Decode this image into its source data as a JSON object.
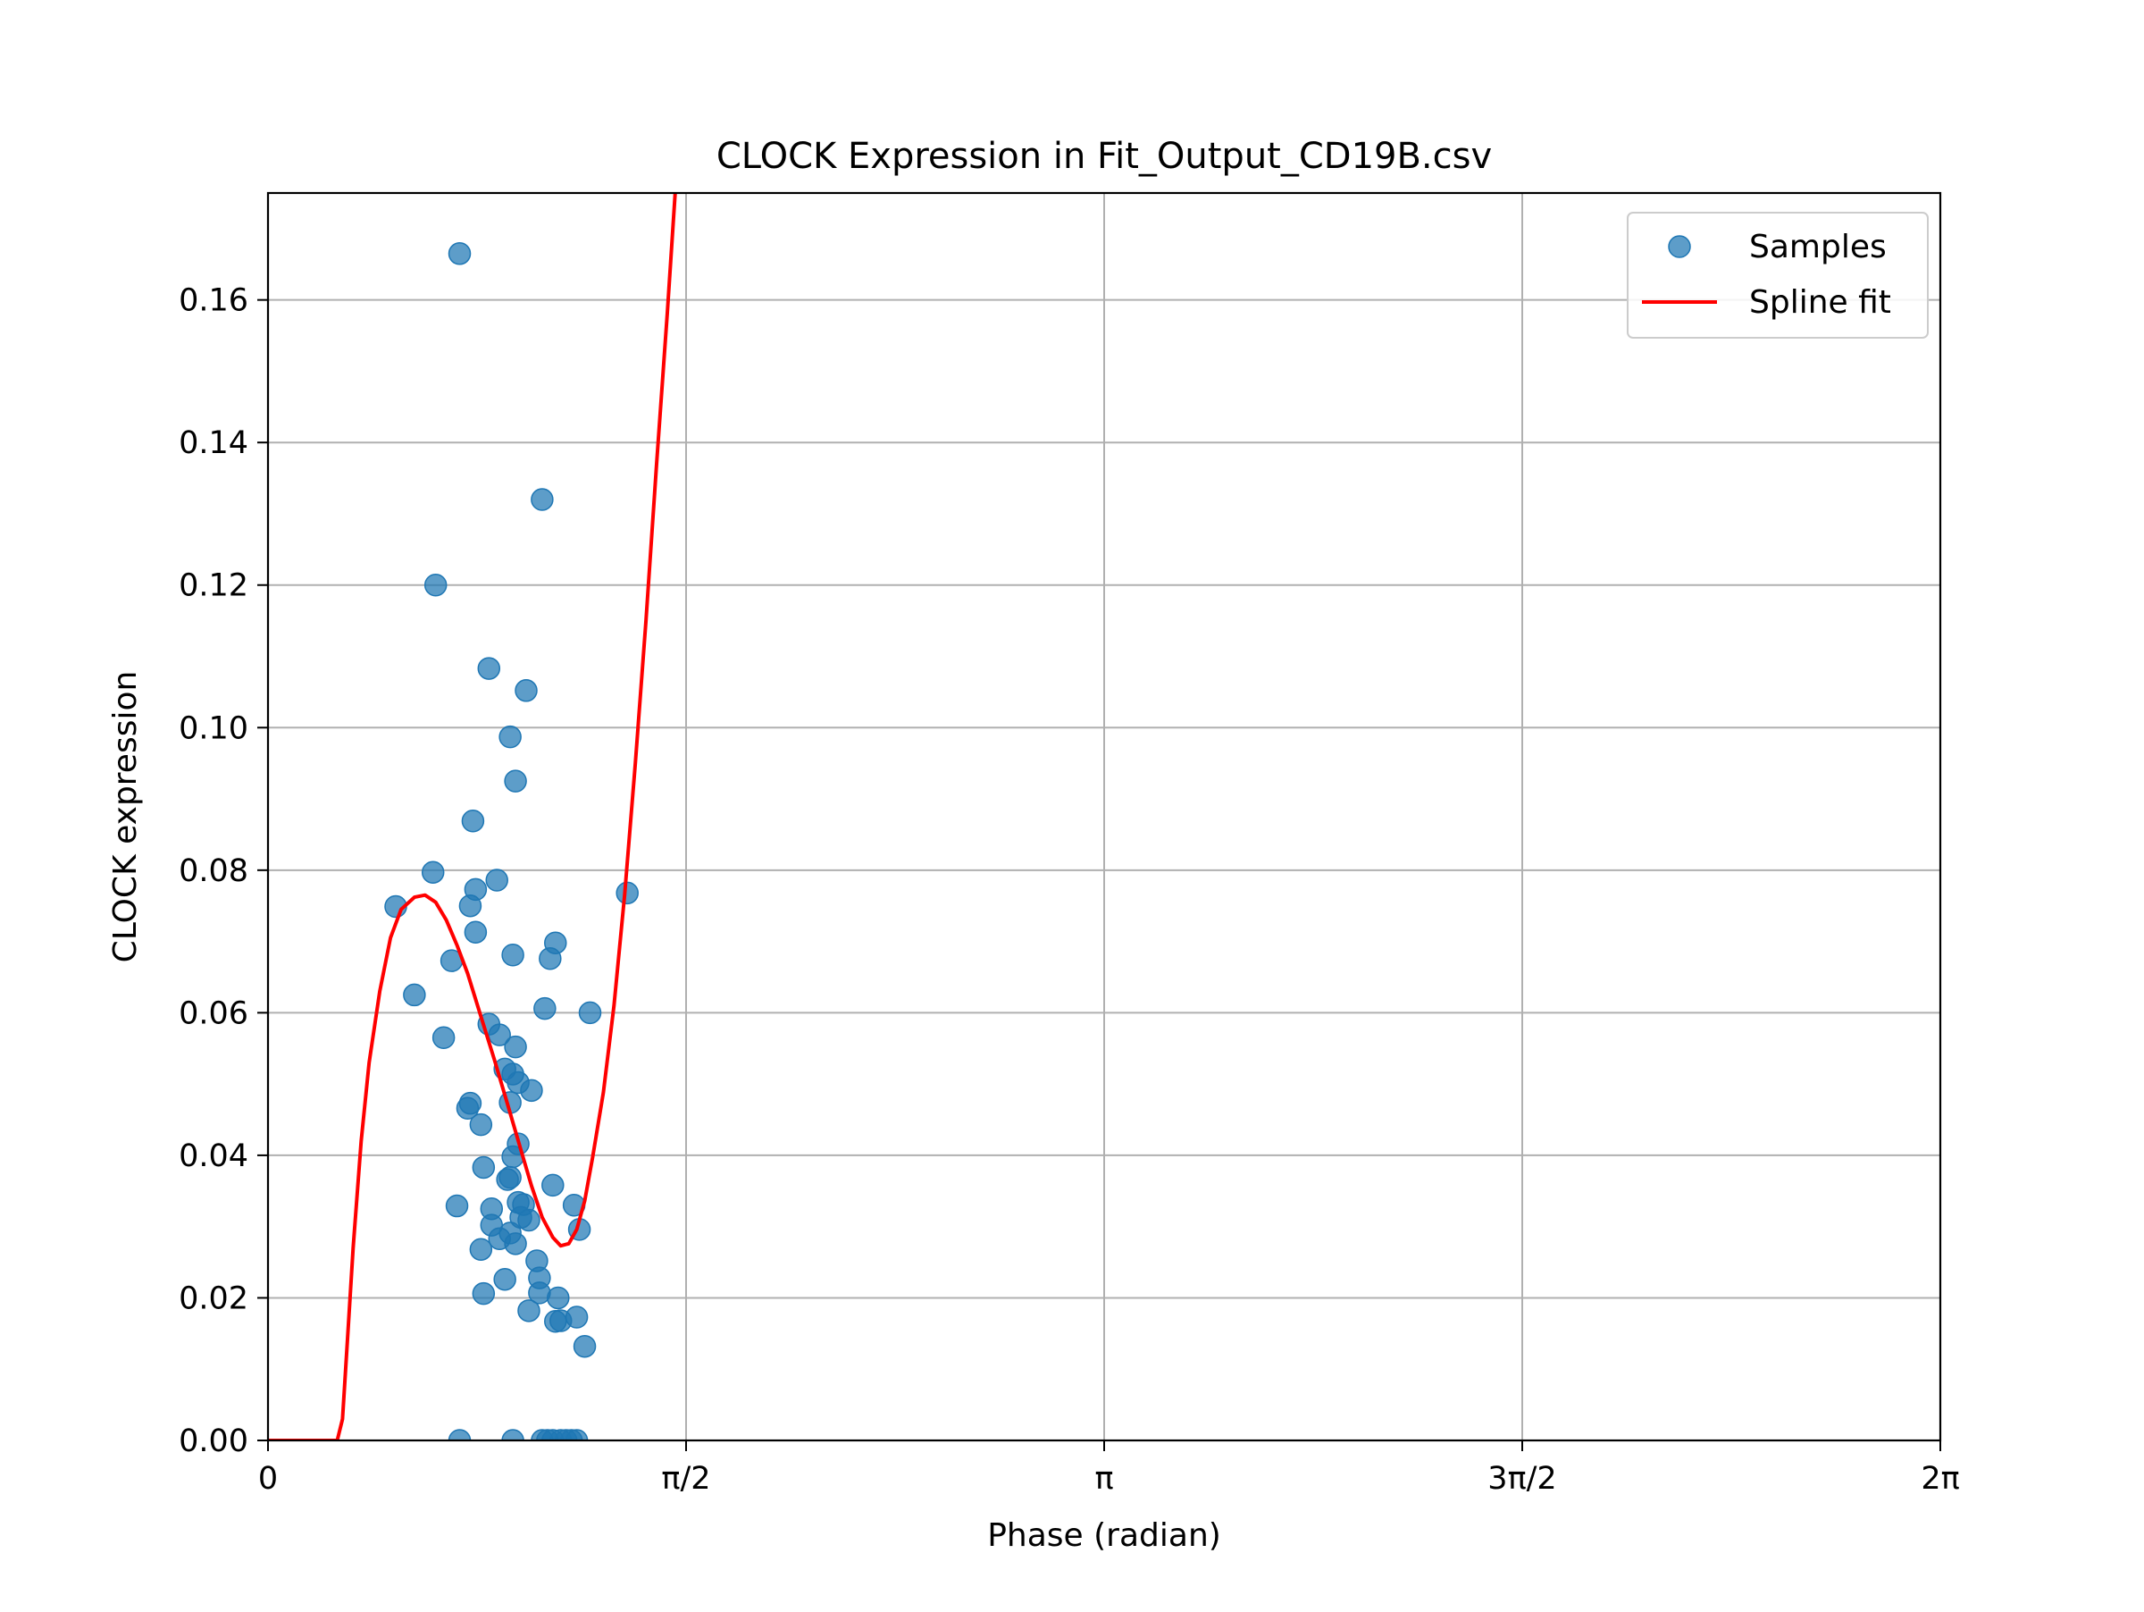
{
  "chart_data": {
    "type": "scatter",
    "title": "CLOCK Expression in Fit_Output_CD19B.csv",
    "xlabel": "Phase (radian)",
    "ylabel": "CLOCK expression",
    "xlim": [
      0,
      6.2832
    ],
    "ylim": [
      0,
      0.175
    ],
    "x_ticks": [
      {
        "value": 0,
        "label": "0"
      },
      {
        "value": 1.5708,
        "label": "π/2"
      },
      {
        "value": 3.1416,
        "label": "π"
      },
      {
        "value": 4.7124,
        "label": "3π/2"
      },
      {
        "value": 6.2832,
        "label": "2π"
      }
    ],
    "y_ticks": [
      {
        "value": 0.0,
        "label": "0.00"
      },
      {
        "value": 0.02,
        "label": "0.02"
      },
      {
        "value": 0.04,
        "label": "0.04"
      },
      {
        "value": 0.06,
        "label": "0.06"
      },
      {
        "value": 0.08,
        "label": "0.08"
      },
      {
        "value": 0.1,
        "label": "0.10"
      },
      {
        "value": 0.12,
        "label": "0.12"
      },
      {
        "value": 0.14,
        "label": "0.14"
      },
      {
        "value": 0.16,
        "label": "0.16"
      }
    ],
    "grid": true,
    "legend_position": "top-right",
    "series": [
      {
        "name": "Samples",
        "kind": "scatter",
        "color": "#1f77b4",
        "points": [
          [
            0.72,
            0.1665
          ],
          [
            1.03,
            0.132
          ],
          [
            0.63,
            0.12
          ],
          [
            0.83,
            0.1083
          ],
          [
            0.97,
            0.1052
          ],
          [
            0.91,
            0.0987
          ],
          [
            0.93,
            0.0925
          ],
          [
            0.77,
            0.0869
          ],
          [
            0.62,
            0.0797
          ],
          [
            0.86,
            0.0786
          ],
          [
            0.78,
            0.0773
          ],
          [
            0.48,
            0.0749
          ],
          [
            0.76,
            0.075
          ],
          [
            1.35,
            0.0768
          ],
          [
            0.78,
            0.0713
          ],
          [
            0.69,
            0.0673
          ],
          [
            0.92,
            0.0681
          ],
          [
            1.06,
            0.0676
          ],
          [
            1.08,
            0.0698
          ],
          [
            0.55,
            0.0625
          ],
          [
            1.04,
            0.0606
          ],
          [
            1.21,
            0.06
          ],
          [
            0.66,
            0.0565
          ],
          [
            0.83,
            0.0584
          ],
          [
            0.87,
            0.0569
          ],
          [
            0.93,
            0.0552
          ],
          [
            0.89,
            0.0521
          ],
          [
            0.92,
            0.0514
          ],
          [
            0.94,
            0.0502
          ],
          [
            0.99,
            0.0491
          ],
          [
            0.76,
            0.0473
          ],
          [
            0.75,
            0.0466
          ],
          [
            0.91,
            0.0474
          ],
          [
            0.8,
            0.0443
          ],
          [
            0.94,
            0.0416
          ],
          [
            0.92,
            0.0398
          ],
          [
            0.81,
            0.0383
          ],
          [
            0.91,
            0.0369
          ],
          [
            0.9,
            0.0366
          ],
          [
            1.07,
            0.0358
          ],
          [
            0.94,
            0.0334
          ],
          [
            0.96,
            0.0331
          ],
          [
            0.71,
            0.0329
          ],
          [
            0.84,
            0.0325
          ],
          [
            1.15,
            0.033
          ],
          [
            0.98,
            0.0309
          ],
          [
            0.84,
            0.0302
          ],
          [
            0.95,
            0.0313
          ],
          [
            0.91,
            0.0291
          ],
          [
            0.87,
            0.0283
          ],
          [
            0.93,
            0.0276
          ],
          [
            1.17,
            0.0296
          ],
          [
            0.8,
            0.0268
          ],
          [
            1.01,
            0.0252
          ],
          [
            1.02,
            0.0228
          ],
          [
            0.89,
            0.0226
          ],
          [
            1.02,
            0.0207
          ],
          [
            0.81,
            0.0206
          ],
          [
            1.09,
            0.02
          ],
          [
            0.98,
            0.0182
          ],
          [
            1.16,
            0.0173
          ],
          [
            1.08,
            0.0167
          ],
          [
            1.1,
            0.0168
          ],
          [
            1.19,
            0.0132
          ],
          [
            0.72,
            0.0
          ],
          [
            0.92,
            0.0
          ],
          [
            1.03,
            0.0
          ],
          [
            1.05,
            0.0
          ],
          [
            1.07,
            0.0
          ],
          [
            1.1,
            0.0
          ],
          [
            1.12,
            0.0
          ],
          [
            1.14,
            0.0
          ],
          [
            1.16,
            0.0
          ]
        ]
      },
      {
        "name": "Spline fit",
        "kind": "line",
        "color": "#ff0000",
        "points": [
          [
            0.0,
            0.0
          ],
          [
            0.24,
            0.0
          ],
          [
            0.26,
            0.0
          ],
          [
            0.28,
            0.003
          ],
          [
            0.3,
            0.015
          ],
          [
            0.32,
            0.027
          ],
          [
            0.35,
            0.042
          ],
          [
            0.38,
            0.053
          ],
          [
            0.42,
            0.063
          ],
          [
            0.46,
            0.0705
          ],
          [
            0.5,
            0.0745
          ],
          [
            0.55,
            0.0762
          ],
          [
            0.59,
            0.0765
          ],
          [
            0.63,
            0.0755
          ],
          [
            0.67,
            0.073
          ],
          [
            0.71,
            0.0695
          ],
          [
            0.75,
            0.0655
          ],
          [
            0.8,
            0.0595
          ],
          [
            0.85,
            0.0535
          ],
          [
            0.9,
            0.0472
          ],
          [
            0.95,
            0.0408
          ],
          [
            0.99,
            0.0357
          ],
          [
            1.03,
            0.0313
          ],
          [
            1.07,
            0.0285
          ],
          [
            1.1,
            0.0273
          ],
          [
            1.13,
            0.0276
          ],
          [
            1.16,
            0.0296
          ],
          [
            1.19,
            0.0336
          ],
          [
            1.22,
            0.0398
          ],
          [
            1.26,
            0.0488
          ],
          [
            1.3,
            0.061
          ],
          [
            1.34,
            0.0765
          ],
          [
            1.38,
            0.095
          ],
          [
            1.42,
            0.115
          ],
          [
            1.46,
            0.137
          ],
          [
            1.5,
            0.158
          ],
          [
            1.53,
            0.175
          ]
        ]
      }
    ]
  }
}
